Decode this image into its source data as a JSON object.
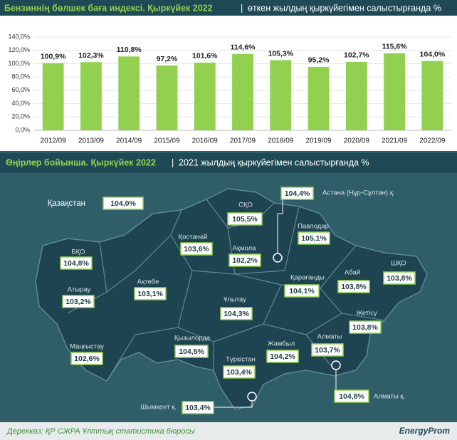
{
  "chart_data": {
    "type": "bar",
    "title": "Бензиннің бөлшек баға индексі. Қыркүйек 2022",
    "subtitle": "өткен жылдың қыркүйегімен салыстырғанда %",
    "categories": [
      "2012/09",
      "2013/09",
      "2014/09",
      "2015/09",
      "2016/09",
      "2017/09",
      "2018/09",
      "2019/09",
      "2020/09",
      "2021/09",
      "2022/09"
    ],
    "values": [
      100.9,
      102.3,
      110.8,
      97.2,
      101.6,
      114.6,
      105.3,
      95.2,
      102.7,
      115.6,
      104.0
    ],
    "value_labels": [
      "100,9%",
      "102,3%",
      "110,8%",
      "97,2%",
      "101,6%",
      "114,6%",
      "105,3%",
      "95,2%",
      "102,7%",
      "115,6%",
      "104,0%"
    ],
    "color": "#92d050",
    "ylim": [
      0,
      140
    ],
    "yticks": [
      {
        "value": 0,
        "label": "0,0%"
      },
      {
        "value": 20,
        "label": "20,0%"
      },
      {
        "value": 40,
        "label": "40,0%"
      },
      {
        "value": 60,
        "label": "60,0%"
      },
      {
        "value": 80,
        "label": "80,0%"
      },
      {
        "value": 100,
        "label": "100,0%"
      },
      {
        "value": 120,
        "label": "120,0%"
      },
      {
        "value": 140,
        "label": "140,0%"
      }
    ],
    "grid": true
  },
  "map": {
    "title": "Өңірлер бойынша. Қыркүйек 2022",
    "subtitle": "2021 жылдың қыркүйегімен салыстырғанда %",
    "regions": [
      {
        "name": "Қазақстан",
        "value": "104,0%"
      },
      {
        "name": "Астана (Нұр-Сұлтан) қ.",
        "value": "104,4%"
      },
      {
        "name": "СҚО",
        "value": "105,5%"
      },
      {
        "name": "Павлодар",
        "value": "105,1%"
      },
      {
        "name": "Қостанай",
        "value": "103,6%"
      },
      {
        "name": "Ақмола",
        "value": "102,2%"
      },
      {
        "name": "БҚО",
        "value": "104,8%"
      },
      {
        "name": "ШҚО",
        "value": "103,8%"
      },
      {
        "name": "Ақтөбе",
        "value": "103,1%"
      },
      {
        "name": "Қарағанды",
        "value": "104,1%"
      },
      {
        "name": "Абай",
        "value": "103,8%"
      },
      {
        "name": "Атырау",
        "value": "103,2%"
      },
      {
        "name": "Ұлытау",
        "value": "104,3%"
      },
      {
        "name": "Жетісу",
        "value": "103,8%"
      },
      {
        "name": "Қызылорда",
        "value": "104,5%"
      },
      {
        "name": "Жамбыл",
        "value": "104,2%"
      },
      {
        "name": "Алматы",
        "value": "103,7%"
      },
      {
        "name": "Маңғыстау",
        "value": "102,6%"
      },
      {
        "name": "Түркістан",
        "value": "103,4%"
      },
      {
        "name": "Шымкент қ.",
        "value": "103,4%"
      },
      {
        "name": "Алматы қ.",
        "value": "104,8%"
      }
    ]
  },
  "footer": {
    "source": "Дереккөз: ҚР СЖРА Ұлттық статистика бюросы",
    "brand": "EnergyProm"
  }
}
